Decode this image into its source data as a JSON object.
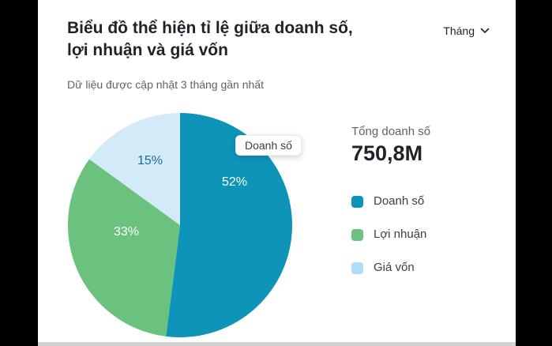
{
  "header": {
    "title_line1": "Biểu đồ thể hiện tỉ lệ giữa doanh số,",
    "title_line2": "lợi nhuận và giá vốn",
    "subtitle": "Dữ liệu được cập nhật 3 tháng gần nhất",
    "period_selector": {
      "label": "Tháng",
      "icon": "chevron-down-icon"
    }
  },
  "chart_data": {
    "type": "pie",
    "title": "Biểu đồ thể hiện tỉ lệ giữa doanh số, lợi nhuận và giá vốn",
    "subtitle": "Dữ liệu được cập nhật 3 tháng gần nhất",
    "legend_position": "right",
    "slices": [
      {
        "label": "Doanh số",
        "value_pct": 52,
        "display": "52%",
        "color": "#0f94b9",
        "label_color": "#ffffff"
      },
      {
        "label": "Lợi nhuận",
        "value_pct": 33,
        "display": "33%",
        "color": "#6ac27e",
        "label_color": "#ffffff"
      },
      {
        "label": "Giá vốn",
        "value_pct": 15,
        "display": "15%",
        "color": "#d3eaf8",
        "label_color": "#1a6d9e"
      }
    ],
    "tooltip": {
      "text": "Doanh số"
    },
    "total": {
      "label": "Tổng doanh số",
      "value": "750,8M"
    }
  },
  "summary": {
    "label": "Tổng doanh số",
    "value": "750,8M"
  },
  "legend": {
    "items": [
      {
        "label": "Doanh số",
        "color": "#0f94b9"
      },
      {
        "label": "Lợi nhuận",
        "color": "#6ac27e"
      },
      {
        "label": "Giá vốn",
        "color": "#b0dcf4"
      }
    ]
  }
}
